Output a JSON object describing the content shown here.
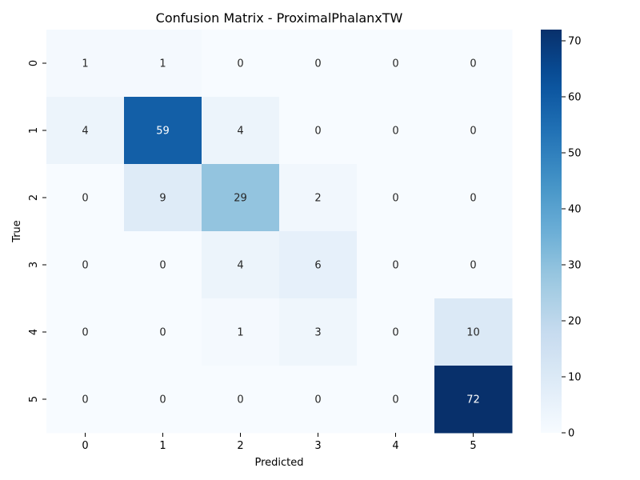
{
  "chart_data": {
    "type": "heatmap",
    "title": "Confusion Matrix - ProximalPhalanxTW",
    "xlabel": "Predicted",
    "ylabel": "True",
    "x_categories": [
      "0",
      "1",
      "2",
      "3",
      "4",
      "5"
    ],
    "y_categories": [
      "0",
      "1",
      "2",
      "3",
      "4",
      "5"
    ],
    "values": [
      [
        1,
        1,
        0,
        0,
        0,
        0
      ],
      [
        4,
        59,
        4,
        0,
        0,
        0
      ],
      [
        0,
        9,
        29,
        2,
        0,
        0
      ],
      [
        0,
        0,
        4,
        6,
        0,
        0
      ],
      [
        0,
        0,
        1,
        3,
        0,
        10
      ],
      [
        0,
        0,
        0,
        0,
        0,
        72
      ]
    ],
    "colormap": "Blues",
    "colorbar": {
      "min": 0,
      "max": 72,
      "ticks": [
        0,
        10,
        20,
        30,
        40,
        50,
        60,
        70
      ]
    },
    "colors": {
      "low": "#f7fbff",
      "high": "#08306b",
      "light_text": "#ffffff",
      "dark_text": "#262626"
    }
  }
}
